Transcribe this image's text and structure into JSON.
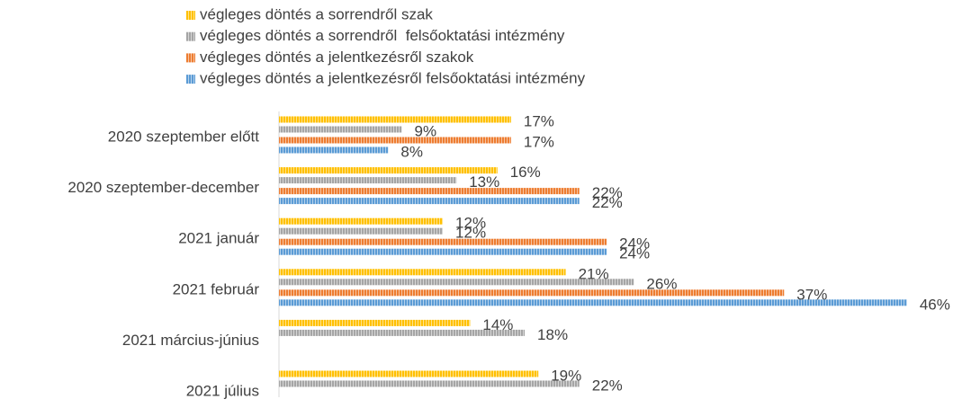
{
  "chart_data": {
    "type": "bar",
    "orientation": "horizontal",
    "categories": [
      "2020 szeptember előtt",
      "2020 szeptember-december",
      "2021 január",
      "2021 február",
      "2021 március-június",
      "2021 július"
    ],
    "series": [
      {
        "name": "végleges döntés a sorrendről szak",
        "color": "#ffc000",
        "values": [
          17,
          16,
          12,
          21,
          14,
          19
        ],
        "value_labels": [
          "17%",
          "16%",
          "12%",
          "21%",
          "14%",
          "19%"
        ]
      },
      {
        "name": "végleges döntés a sorrendről  felsőoktatási intézmény",
        "color": "#a5a5a5",
        "values": [
          9,
          13,
          12,
          26,
          18,
          22
        ],
        "value_labels": [
          "9%",
          "13%",
          "12%",
          "26%",
          "18%",
          "22%"
        ]
      },
      {
        "name": "végleges döntés a jelentkezésről szakok",
        "color": "#ed7d31",
        "values": [
          17,
          22,
          24,
          37,
          null,
          null
        ],
        "value_labels": [
          "17%",
          "22%",
          "24%",
          "37%",
          null,
          null
        ]
      },
      {
        "name": "végleges döntés a jelentkezésről felsőoktatási intézmény",
        "color": "#5b9bd5",
        "values": [
          8,
          22,
          24,
          46,
          null,
          null
        ],
        "value_labels": [
          "8%",
          "22%",
          "24%",
          "46%",
          null,
          null
        ]
      }
    ],
    "legend": "top"
  }
}
